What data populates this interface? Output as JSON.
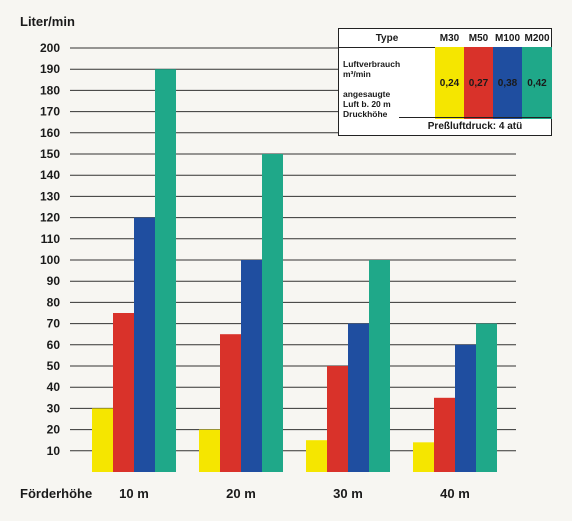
{
  "chart_data": {
    "type": "bar",
    "ylabel": "Liter/min",
    "xlabel": "Förderhöhe",
    "categories": [
      "10 m",
      "20 m",
      "30 m",
      "40 m"
    ],
    "ylim": [
      0,
      200
    ],
    "yticks": [
      10,
      20,
      30,
      40,
      50,
      60,
      70,
      80,
      90,
      100,
      110,
      120,
      130,
      140,
      150,
      160,
      170,
      180,
      190,
      200
    ],
    "grid": true,
    "series": [
      {
        "name": "M30",
        "color": "#f5e600",
        "values": [
          30,
          20,
          15,
          14
        ]
      },
      {
        "name": "M50",
        "color": "#d9322a",
        "values": [
          75,
          65,
          50,
          35
        ]
      },
      {
        "name": "M100",
        "color": "#1f4ea0",
        "values": [
          120,
          100,
          70,
          60
        ]
      },
      {
        "name": "M200",
        "color": "#1fa889",
        "values": [
          190,
          150,
          100,
          70
        ]
      }
    ]
  },
  "legend": {
    "type_label": "Type",
    "desc_line1": "Luftverbrauch",
    "desc_line2": "m³/min",
    "desc_line3": "angesaugte",
    "desc_line4": "Luft b. 20 m",
    "desc_line5": "Druckhöhe",
    "consumption": [
      "0,24",
      "0,27",
      "0,38",
      "0,42"
    ],
    "footer": "Preßluftdruck: 4 atü"
  }
}
